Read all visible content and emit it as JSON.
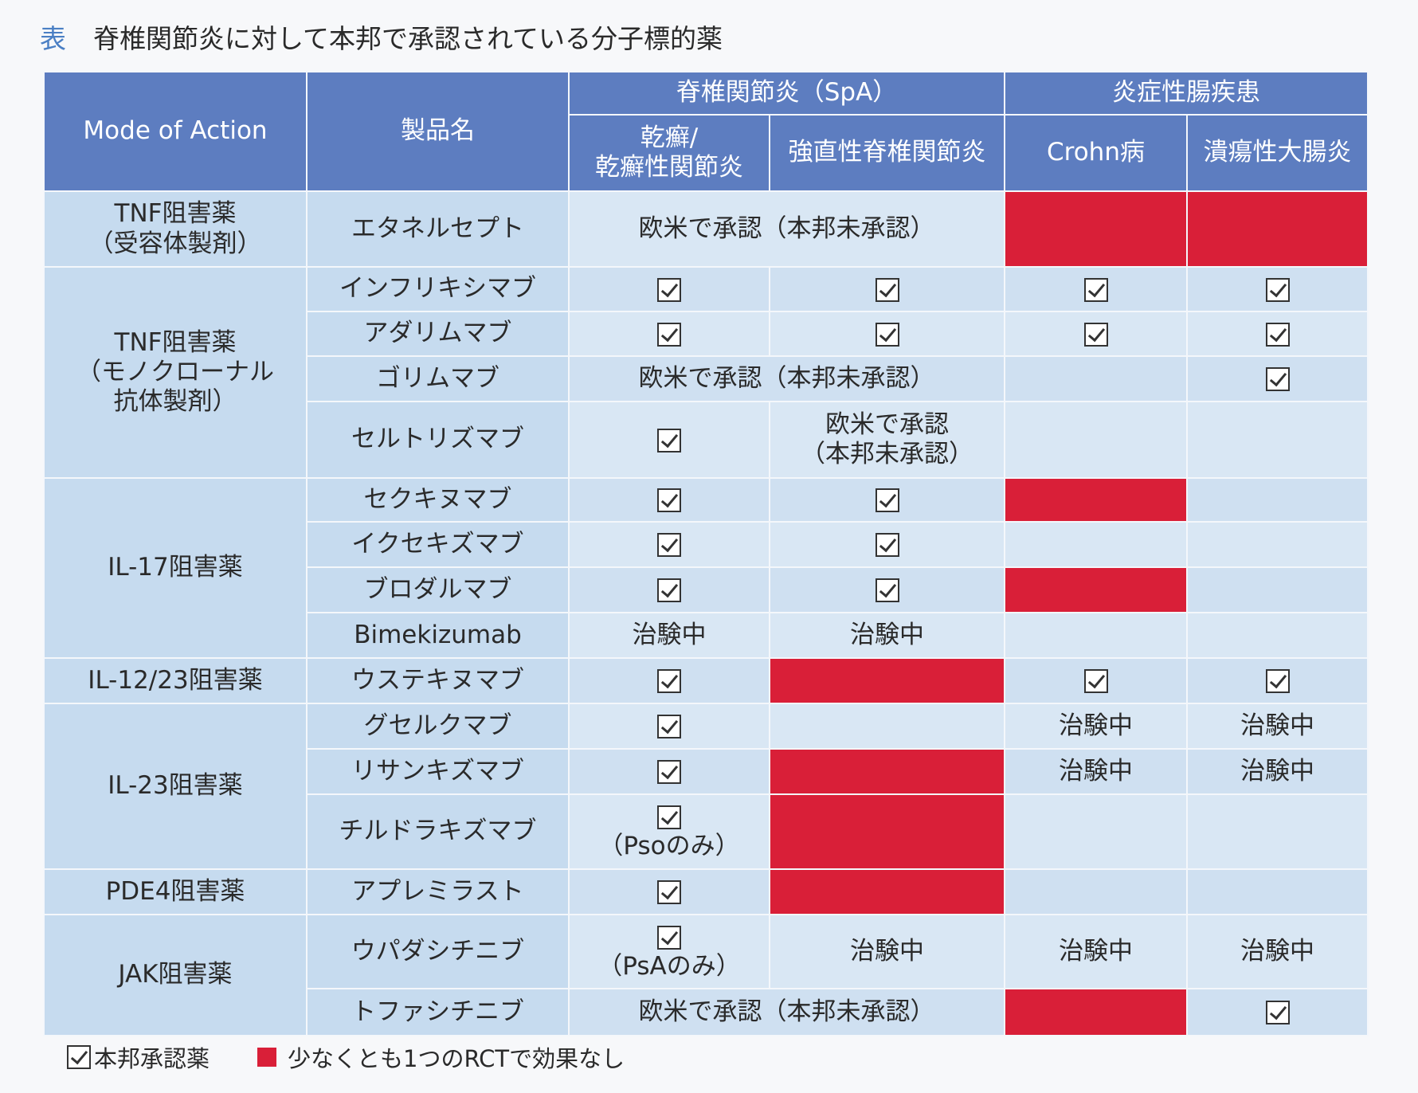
{
  "title": {
    "label": "表",
    "text": "脊椎関節炎に対して本邦で承認されている分子標的薬"
  },
  "table": {
    "header": {
      "mode": "Mode of Action",
      "product": "製品名",
      "spa": "脊椎関節炎（SpA）",
      "ibd": "炎症性腸疾患",
      "columns": [
        "乾癬/\n乾癬性関節炎",
        "強直性脊椎関節炎",
        "Crohn病",
        "潰瘍性大腸炎"
      ]
    },
    "modes": [
      "TNF阻害薬\n（受容体製剤）",
      "TNF阻害薬\n（モノクローナル\n抗体製剤）",
      "IL-17阻害薬",
      "IL-12/23阻害薬",
      "IL-23阻害薬",
      "PDE4阻害薬",
      "JAK阻害薬"
    ],
    "rows": [
      {
        "product": "エタネルセプト",
        "spa": "欧米で承認（本邦未承認）"
      },
      {
        "product": "インフリキシマブ"
      },
      {
        "product": "アダリムマブ"
      },
      {
        "product": "ゴリムマブ",
        "spa": "欧米で承認（本邦未承認）"
      },
      {
        "product": "セルトリズマブ",
        "as": "欧米で承認\n（本邦未承認）"
      },
      {
        "product": "セクキヌマブ"
      },
      {
        "product": "イクセキズマブ"
      },
      {
        "product": "ブロダルマブ"
      },
      {
        "product": "Bimekizumab",
        "pso": "治験中",
        "as": "治験中"
      },
      {
        "product": "ウステキヌマブ"
      },
      {
        "product": "グセルクマブ",
        "cd": "治験中",
        "uc": "治験中"
      },
      {
        "product": "リサンキズマブ",
        "cd": "治験中",
        "uc": "治験中"
      },
      {
        "product": "チルドラキズマブ",
        "pso": "（Psoのみ）"
      },
      {
        "product": "アプレミラスト"
      },
      {
        "product": "ウパダシチニブ",
        "pso": "（PsAのみ）",
        "as": "治験中",
        "cd": "治験中",
        "uc": "治験中"
      },
      {
        "product": "トファシチニブ",
        "spa": "欧米で承認（本邦未承認）"
      }
    ]
  },
  "legend": {
    "approved": "本邦承認薬",
    "no_effect": "少なくとも1つのRCTで効果なし"
  }
}
